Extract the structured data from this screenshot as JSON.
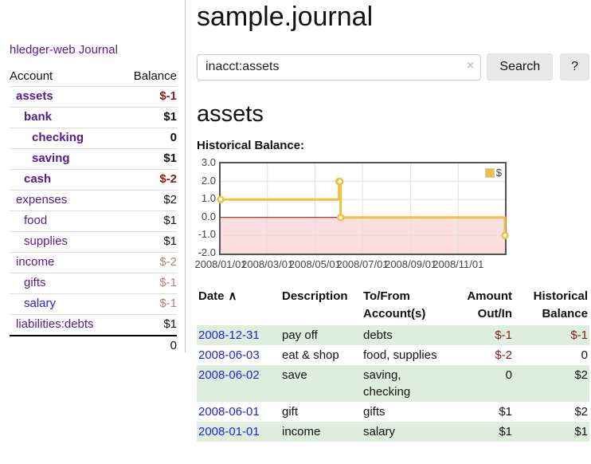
{
  "app": {
    "title": "hledger-web"
  },
  "sidebar": {
    "journal_link": "Journal",
    "accounts": {
      "header": {
        "account": "Account",
        "balance": "Balance"
      },
      "rows": [
        {
          "account": "assets",
          "balance": "$-1",
          "depth": 1,
          "selected": true,
          "link": "visited",
          "tone": "neg-strong"
        },
        {
          "account": "bank",
          "balance": "$1",
          "depth": 2,
          "selected": true,
          "link": "visited",
          "tone": "plain"
        },
        {
          "account": "checking",
          "balance": "0",
          "depth": 3,
          "selected": true,
          "link": "visited",
          "tone": "plain"
        },
        {
          "account": "saving",
          "balance": "$1",
          "depth": 3,
          "selected": true,
          "link": "visited",
          "tone": "plain"
        },
        {
          "account": "cash",
          "balance": "$-2",
          "depth": 2,
          "selected": true,
          "link": "visited",
          "tone": "neg-strong"
        },
        {
          "account": "expenses",
          "balance": "$2",
          "depth": 1,
          "selected": false,
          "link": "visited",
          "tone": "plain"
        },
        {
          "account": "food",
          "balance": "$1",
          "depth": 2,
          "selected": false,
          "link": "visited",
          "tone": "plain"
        },
        {
          "account": "supplies",
          "balance": "$1",
          "depth": 2,
          "selected": false,
          "link": "visited",
          "tone": "plain"
        },
        {
          "account": "income",
          "balance": "$-2",
          "depth": 1,
          "selected": false,
          "link": "visited",
          "tone": "neg-muted"
        },
        {
          "account": "gifts",
          "balance": "$-1",
          "depth": 2,
          "selected": false,
          "link": "visited",
          "tone": "neg-muted"
        },
        {
          "account": "salary",
          "balance": "$-1",
          "depth": 2,
          "selected": false,
          "link": "unvisited",
          "tone": "neg-muted"
        },
        {
          "account": "liabilities:debts",
          "balance": "$1",
          "depth": 1,
          "selected": false,
          "link": "visited",
          "tone": "plain"
        }
      ],
      "total": "0"
    }
  },
  "main": {
    "title": "sample.journal",
    "search": {
      "value": "inacct:assets",
      "clear_icon": "×",
      "search_button": "Search",
      "help_button": "?"
    },
    "account_heading": "assets",
    "chart_label": "Historical Balance:"
  },
  "chart_data": {
    "type": "line",
    "step": true,
    "title": "Historical Balance:",
    "series": [
      {
        "name": "$",
        "color": "#edc240",
        "points": [
          [
            "2008-01-01",
            1
          ],
          [
            "2008-06-01",
            2
          ],
          [
            "2008-06-02",
            2
          ],
          [
            "2008-06-03",
            0
          ],
          [
            "2008-12-31",
            -1
          ]
        ]
      }
    ],
    "x_range": [
      "2008-01-01",
      "2008-12-31"
    ],
    "x_ticks": [
      [
        "2008-01-01",
        "2008/01/01"
      ],
      [
        "2008-03-01",
        "2008/03/01"
      ],
      [
        "2008-05-01",
        "2008/05/01"
      ],
      [
        "2008-07-01",
        "2008/07/01"
      ],
      [
        "2008-09-01",
        "2008/09/01"
      ],
      [
        "2008-11-01",
        "2008/11/01"
      ]
    ],
    "y_ticks": [
      [
        3,
        "3.0"
      ],
      [
        2,
        "2.0"
      ],
      [
        1,
        "1.0"
      ],
      [
        0,
        "0.0"
      ],
      [
        -1,
        "-1.0"
      ],
      [
        -2,
        "-2.0"
      ]
    ],
    "ylim": [
      -2,
      3
    ],
    "grid": true,
    "legend": {
      "label": "$",
      "position": "top-right"
    },
    "gridline_color": "#e0e0e0",
    "zero_line_color": "#8b0000",
    "negative_area_fill": "#fbdee0"
  },
  "register": {
    "headers": [
      {
        "line1": "Date",
        "line2": "",
        "sort_icon": "∧"
      },
      {
        "line1": "Description",
        "line2": ""
      },
      {
        "line1": "To/From",
        "line2": "Account(s)"
      },
      {
        "line1": "Amount",
        "line2": "Out/In"
      },
      {
        "line1": "Historical",
        "line2": "Balance"
      }
    ],
    "rows": [
      {
        "date": "2008-12-31",
        "description": "pay off",
        "to_from": "debts",
        "amount": "$-1",
        "amount_negative": true,
        "balance": "$-1",
        "balance_negative": true
      },
      {
        "date": "2008-06-03",
        "description": "eat & shop",
        "to_from": "food, supplies",
        "amount": "$-2",
        "amount_negative": true,
        "balance": "0",
        "balance_negative": false
      },
      {
        "date": "2008-06-02",
        "description": "save",
        "to_from": "saving,\nchecking",
        "amount": "0",
        "amount_negative": false,
        "balance": "$2",
        "balance_negative": false
      },
      {
        "date": "2008-06-01",
        "description": "gift",
        "to_from": "gifts",
        "amount": "$1",
        "amount_negative": false,
        "balance": "$2",
        "balance_negative": false
      },
      {
        "date": "2008-01-01",
        "description": "income",
        "to_from": "salary",
        "amount": "$1",
        "amount_negative": false,
        "balance": "$1",
        "balance_negative": false
      }
    ]
  },
  "colors": {
    "accent_purple": "#551a8b",
    "link_blue": "#2222dd",
    "negative_strong": "#8b1a1a",
    "negative_muted": "#b97c7c",
    "row_stripe_green": "#ddeedd",
    "series_yellow": "#edc240"
  }
}
